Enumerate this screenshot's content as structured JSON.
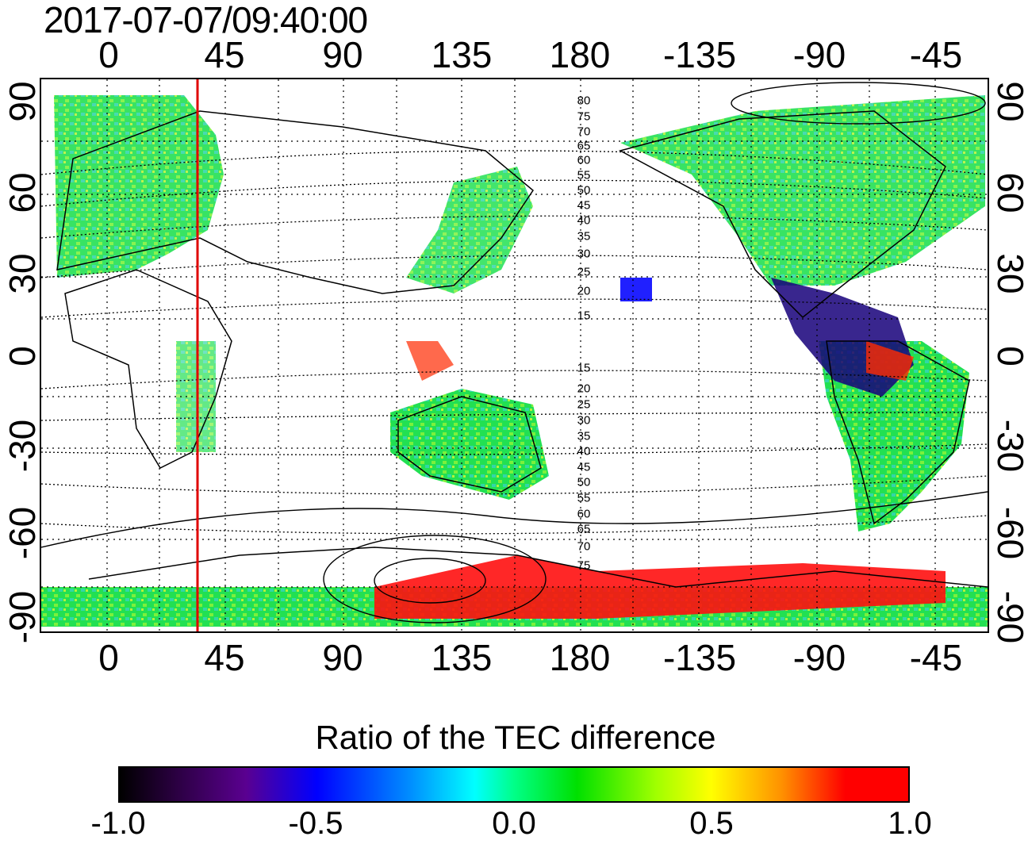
{
  "timestamp": "2017-07-07/09:40:00",
  "top_lon_ticks": [
    "0",
    "45",
    "90",
    "135",
    "180",
    "-135",
    "-90",
    "-45"
  ],
  "bottom_lon_ticks": [
    "0",
    "45",
    "90",
    "135",
    "180",
    "-135",
    "-90",
    "-45"
  ],
  "left_lat_ticks": [
    "90",
    "60",
    "30",
    "0",
    "-30",
    "-60",
    "-90"
  ],
  "right_lat_ticks": [
    "90",
    "60",
    "30",
    "0",
    "-30",
    "-60",
    "-90"
  ],
  "contour_labels_north": [
    "80",
    "75",
    "70",
    "65",
    "60",
    "55",
    "50",
    "45",
    "40",
    "35",
    "30",
    "25",
    "20",
    "15"
  ],
  "contour_labels_south": [
    "15",
    "20",
    "25",
    "30",
    "35",
    "40",
    "45",
    "50",
    "55",
    "60",
    "65",
    "70",
    "75"
  ],
  "colorbar": {
    "title": "Ratio of the TEC difference",
    "ticks": [
      "-1.0",
      "-0.5",
      "0.0",
      "0.5",
      "1.0"
    ],
    "range": [
      -1.0,
      1.0
    ]
  },
  "map": {
    "lon_range": [
      -20,
      340
    ],
    "lat_range": [
      -90,
      90
    ],
    "marker_longitude": 35,
    "marker_color": "#e00000"
  }
}
